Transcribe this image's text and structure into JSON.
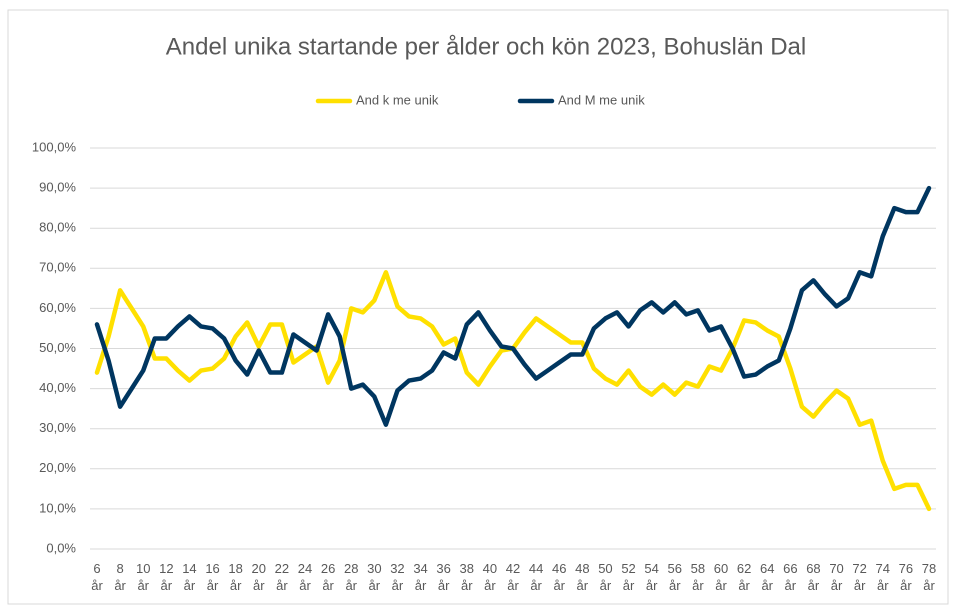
{
  "chart_data": {
    "type": "line",
    "title": "Andel unika startande per ålder och kön 2023, Bohuslän Dal",
    "categories": [
      "6 år",
      null,
      "8 år",
      null,
      "10 år",
      null,
      "12 år",
      null,
      "14 år",
      null,
      "16 år",
      null,
      "18 år",
      null,
      "20 år",
      null,
      "22 år",
      null,
      "24 år",
      null,
      "26 år",
      null,
      "28 år",
      null,
      "30 år",
      null,
      "32 år",
      null,
      "34 år",
      null,
      "36 år",
      null,
      "38 år",
      null,
      "40 år",
      null,
      "42 år",
      null,
      "44 år",
      null,
      "46 år",
      null,
      "48 år",
      null,
      "50 år",
      null,
      "52 år",
      null,
      "54 år",
      null,
      "56 år",
      null,
      "58 år",
      null,
      "60 år",
      null,
      "62 år",
      null,
      "64 år",
      null,
      "66 år",
      null,
      "68 år",
      null,
      "70 år",
      null,
      "72 år",
      null,
      "74 år",
      null,
      "76 år",
      null,
      "78 år"
    ],
    "series": [
      {
        "name": "And k me unik",
        "color": "#ffe000",
        "values": [
          44,
          53,
          64.5,
          60,
          55.5,
          47.5,
          47.5,
          44.5,
          42,
          44.5,
          45,
          47.5,
          53,
          56.5,
          50.5,
          56,
          56,
          46.5,
          48.5,
          50.5,
          41.5,
          47,
          60,
          59,
          62,
          69,
          60.5,
          58,
          57.5,
          55.5,
          51,
          52.5,
          44,
          41,
          45.5,
          49.5,
          50,
          54,
          57.5,
          55.5,
          53.5,
          51.5,
          51.5,
          45,
          42.5,
          41,
          44.5,
          40.5,
          38.5,
          41,
          38.5,
          41.5,
          40.5,
          45.5,
          44.5,
          50,
          57,
          56.5,
          54.5,
          53,
          45,
          35.5,
          33,
          36.5,
          39.5,
          37.5,
          31,
          32,
          22,
          15,
          16,
          16,
          10
        ]
      },
      {
        "name": "And M me unik",
        "color": "#003660",
        "values": [
          56,
          47,
          35.5,
          40,
          44.5,
          52.5,
          52.5,
          55.5,
          58,
          55.5,
          55,
          52.5,
          47,
          43.5,
          49.5,
          44,
          44,
          53.5,
          51.5,
          49.5,
          58.5,
          53,
          40,
          41,
          38,
          31,
          39.5,
          42,
          42.5,
          44.5,
          49,
          47.5,
          56,
          59,
          54.5,
          50.5,
          50,
          46,
          42.5,
          44.5,
          46.5,
          48.5,
          48.5,
          55,
          57.5,
          59,
          55.5,
          59.5,
          61.5,
          59,
          61.5,
          58.5,
          59.5,
          54.5,
          55.5,
          50,
          43,
          43.5,
          45.5,
          47,
          55,
          64.5,
          67,
          63.5,
          60.5,
          62.5,
          69,
          68,
          78,
          85,
          84,
          84,
          90
        ]
      }
    ],
    "ylim": [
      0,
      100
    ],
    "yticks": [
      {
        "value": 0,
        "label": "0,0%"
      },
      {
        "value": 10,
        "label": "10,0%"
      },
      {
        "value": 20,
        "label": "20,0%"
      },
      {
        "value": 30,
        "label": "30,0%"
      },
      {
        "value": 40,
        "label": "40,0%"
      },
      {
        "value": 50,
        "label": "50,0%"
      },
      {
        "value": 60,
        "label": "60,0%"
      },
      {
        "value": 70,
        "label": "70,0%"
      },
      {
        "value": 80,
        "label": "80,0%"
      },
      {
        "value": 90,
        "label": "90,0%"
      },
      {
        "value": 100,
        "label": "100,0%"
      }
    ],
    "grid": true,
    "legend": "top"
  }
}
